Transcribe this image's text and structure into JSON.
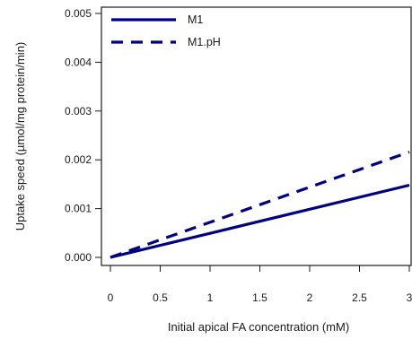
{
  "chart_data": {
    "type": "line",
    "title": "",
    "xlabel": "Initial apical FA concentration (mM)",
    "ylabel": "Uptake speed (µmol/mg protein/min)",
    "xlim": [
      0,
      3
    ],
    "ylim": [
      0,
      0.005
    ],
    "x_ticks": [
      {
        "value": 0,
        "label": "0"
      },
      {
        "value": 0.5,
        "label": "0.5"
      },
      {
        "value": 1,
        "label": "1"
      },
      {
        "value": 1.5,
        "label": "1.5"
      },
      {
        "value": 2,
        "label": "2"
      },
      {
        "value": 2.5,
        "label": "2.5"
      },
      {
        "value": 3,
        "label": "3"
      }
    ],
    "y_ticks": [
      {
        "value": 0,
        "label": "0.000"
      },
      {
        "value": 0.001,
        "label": "0.001"
      },
      {
        "value": 0.002,
        "label": "0.002"
      },
      {
        "value": 0.003,
        "label": "0.003"
      },
      {
        "value": 0.004,
        "label": "0.004"
      },
      {
        "value": 0.005,
        "label": "0.005"
      }
    ],
    "grid": false,
    "legend_position": "top-left",
    "series": [
      {
        "name": "M1",
        "style": "solid",
        "color": "#000080",
        "x": [
          0,
          3
        ],
        "y": [
          0,
          0.00148
        ]
      },
      {
        "name": "M1.pH",
        "style": "dashed",
        "color": "#000080",
        "x": [
          0,
          3
        ],
        "y": [
          0,
          0.00216
        ]
      }
    ]
  }
}
